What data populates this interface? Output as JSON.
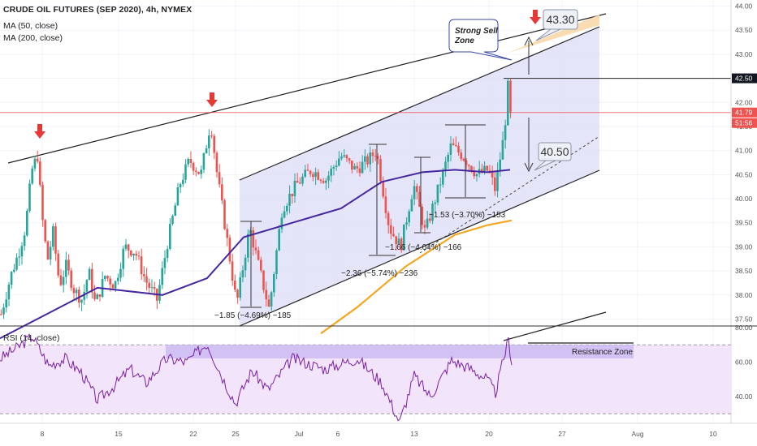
{
  "legend": {
    "symbol": "CRUDE OIL FUTURES (SEP 2020), 4h, NYMEX",
    "ma50": "MA (50, close)",
    "ma200": "MA (200, close)",
    "rsi": "RSI (14, close)"
  },
  "colors": {
    "up": "#26a69a",
    "down": "#ef5350",
    "ma50": "#4527a0",
    "ma200": "#f5a623",
    "channel": "#dcdcf7",
    "rsi_line": "#7b1fa2",
    "rsi_band": "#f1e4fb",
    "resistance": "#c7b5f0",
    "arrow": "#e53935",
    "sell_zone": "#f8d8a8"
  },
  "chart_data": [
    {
      "type": "candlestick",
      "title": "CRUDE OIL FUTURES (SEP 2020), 4h, NYMEX",
      "x_tick_labels": [
        "8",
        "15",
        "22",
        "25",
        "Jul",
        "6",
        "13",
        "20",
        "27",
        "Aug",
        "10"
      ],
      "y_ticks": [
        "44.00",
        "43.50",
        "43.00",
        "42.50",
        "42.00",
        "41.50",
        "41.00",
        "40.50",
        "40.00",
        "39.50",
        "39.00",
        "38.50",
        "38.00",
        "37.50"
      ],
      "ylim": [
        37.2,
        44.0
      ],
      "price_tags": [
        {
          "label": "42.50",
          "value": 42.5,
          "style": "dark"
        },
        {
          "label": "41.79",
          "value": 41.79,
          "style": "red"
        },
        {
          "label": "51:56",
          "value": 41.6,
          "style": "red"
        }
      ],
      "callouts": [
        {
          "label": "43.30",
          "value": 43.3
        },
        {
          "label": "40.50",
          "value": 40.5
        }
      ],
      "sell_zone_label": [
        "Strong Sell",
        "Zone"
      ],
      "measures": [
        "−1.85 (−4.69%) −185",
        "−2.36 (−5.74%) −236",
        "−1.66 (−4.04%) −166",
        "−1.53 (−3.70%) −153"
      ],
      "anchors": [
        {
          "x": 0,
          "price": 37.6
        },
        {
          "x": 12,
          "price": 38.4
        },
        {
          "x": 22,
          "price": 38.9
        },
        {
          "x": 30,
          "price": 39.4
        },
        {
          "x": 38,
          "price": 40.6
        },
        {
          "x": 45,
          "price": 40.9
        },
        {
          "x": 50,
          "price": 39.7
        },
        {
          "x": 57,
          "price": 38.7
        },
        {
          "x": 64,
          "price": 39.3
        },
        {
          "x": 72,
          "price": 38.2
        },
        {
          "x": 80,
          "price": 38.6
        },
        {
          "x": 90,
          "price": 38.1
        },
        {
          "x": 100,
          "price": 37.9
        },
        {
          "x": 108,
          "price": 38.5
        },
        {
          "x": 116,
          "price": 37.8
        },
        {
          "x": 128,
          "price": 38.4
        },
        {
          "x": 140,
          "price": 38.2
        },
        {
          "x": 152,
          "price": 39.0
        },
        {
          "x": 165,
          "price": 38.9
        },
        {
          "x": 178,
          "price": 38.3
        },
        {
          "x": 192,
          "price": 37.9
        },
        {
          "x": 205,
          "price": 39.1
        },
        {
          "x": 220,
          "price": 40.3
        },
        {
          "x": 232,
          "price": 40.8
        },
        {
          "x": 246,
          "price": 40.5
        },
        {
          "x": 258,
          "price": 41.6
        },
        {
          "x": 266,
          "price": 40.5
        },
        {
          "x": 276,
          "price": 39.4
        },
        {
          "x": 290,
          "price": 37.8
        },
        {
          "x": 306,
          "price": 39.4
        },
        {
          "x": 320,
          "price": 38.4
        },
        {
          "x": 330,
          "price": 37.7
        },
        {
          "x": 346,
          "price": 39.8
        },
        {
          "x": 364,
          "price": 40.3
        },
        {
          "x": 382,
          "price": 40.6
        },
        {
          "x": 400,
          "price": 40.4
        },
        {
          "x": 418,
          "price": 40.9
        },
        {
          "x": 436,
          "price": 40.6
        },
        {
          "x": 452,
          "price": 40.8
        },
        {
          "x": 462,
          "price": 41.0
        },
        {
          "x": 478,
          "price": 39.4
        },
        {
          "x": 492,
          "price": 39.0
        },
        {
          "x": 508,
          "price": 40.3
        },
        {
          "x": 522,
          "price": 39.3
        },
        {
          "x": 540,
          "price": 40.3
        },
        {
          "x": 554,
          "price": 41.1
        },
        {
          "x": 568,
          "price": 40.9
        },
        {
          "x": 586,
          "price": 40.5
        },
        {
          "x": 600,
          "price": 40.6
        },
        {
          "x": 608,
          "price": 40.2
        },
        {
          "x": 618,
          "price": 41.2
        },
        {
          "x": 625,
          "price": 42.3
        },
        {
          "x": 629,
          "price": 41.79
        }
      ],
      "ma50": [
        {
          "x": 0,
          "price": 37.1
        },
        {
          "x": 120,
          "price": 38.15
        },
        {
          "x": 200,
          "price": 38.0
        },
        {
          "x": 255,
          "price": 38.35
        },
        {
          "x": 300,
          "price": 39.2
        },
        {
          "x": 360,
          "price": 39.5
        },
        {
          "x": 420,
          "price": 39.8
        },
        {
          "x": 470,
          "price": 40.35
        },
        {
          "x": 520,
          "price": 40.55
        },
        {
          "x": 560,
          "price": 40.6
        },
        {
          "x": 600,
          "price": 40.55
        },
        {
          "x": 628,
          "price": 40.6
        }
      ],
      "ma200": [
        {
          "x": 395,
          "price": 37.2
        },
        {
          "x": 440,
          "price": 37.75
        },
        {
          "x": 500,
          "price": 38.6
        },
        {
          "x": 560,
          "price": 39.25
        },
        {
          "x": 600,
          "price": 39.45
        },
        {
          "x": 630,
          "price": 39.55
        }
      ]
    },
    {
      "type": "line",
      "title": "RSI (14, close)",
      "y_ticks": [
        "80.00",
        "60.00",
        "40.00"
      ],
      "ylim": [
        24,
        80
      ],
      "bands": [
        70,
        30
      ],
      "resistance_label": "Resistance Zone",
      "rsi_anchors": [
        {
          "x": 0,
          "value": 62
        },
        {
          "x": 20,
          "value": 68
        },
        {
          "x": 40,
          "value": 75
        },
        {
          "x": 60,
          "value": 58
        },
        {
          "x": 80,
          "value": 62
        },
        {
          "x": 100,
          "value": 54
        },
        {
          "x": 120,
          "value": 38
        },
        {
          "x": 140,
          "value": 46
        },
        {
          "x": 160,
          "value": 56
        },
        {
          "x": 180,
          "value": 48
        },
        {
          "x": 205,
          "value": 62
        },
        {
          "x": 230,
          "value": 60
        },
        {
          "x": 255,
          "value": 71
        },
        {
          "x": 275,
          "value": 50
        },
        {
          "x": 290,
          "value": 36
        },
        {
          "x": 310,
          "value": 55
        },
        {
          "x": 330,
          "value": 44
        },
        {
          "x": 360,
          "value": 62
        },
        {
          "x": 400,
          "value": 56
        },
        {
          "x": 440,
          "value": 62
        },
        {
          "x": 470,
          "value": 48
        },
        {
          "x": 492,
          "value": 25
        },
        {
          "x": 510,
          "value": 52
        },
        {
          "x": 530,
          "value": 40
        },
        {
          "x": 556,
          "value": 61
        },
        {
          "x": 580,
          "value": 56
        },
        {
          "x": 600,
          "value": 50
        },
        {
          "x": 610,
          "value": 42
        },
        {
          "x": 620,
          "value": 62
        },
        {
          "x": 626,
          "value": 73
        },
        {
          "x": 630,
          "value": 60
        }
      ]
    }
  ]
}
